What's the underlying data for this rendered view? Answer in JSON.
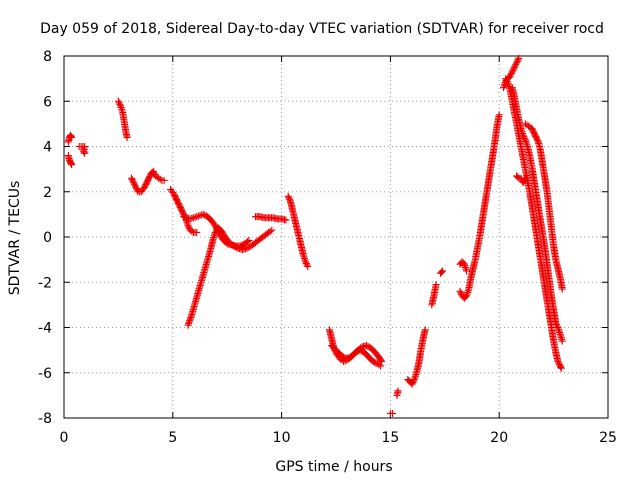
{
  "chart_data": {
    "type": "scatter",
    "title": "Day 059 of 2018, Sidereal Day-to-day VTEC variation (SDTVAR) for receiver rocd",
    "xlabel": "GPS time / hours",
    "ylabel": "SDTVAR / TECUs",
    "xlim": [
      0,
      25
    ],
    "ylim": [
      -8,
      8
    ],
    "xticks": [
      0,
      5,
      10,
      15,
      20,
      25
    ],
    "yticks": [
      -8,
      -6,
      -4,
      -2,
      0,
      2,
      4,
      6,
      8
    ],
    "grid": true,
    "marker": "+",
    "color": "#ee0000",
    "series": [
      {
        "name": "SDTVAR",
        "segments": [
          [
            [
              0.2,
              3.6
            ],
            [
              0.25,
              3.4
            ],
            [
              0.3,
              3.3
            ],
            [
              0.35,
              3.2
            ]
          ],
          [
            [
              0.2,
              4.2
            ],
            [
              0.25,
              4.4
            ],
            [
              0.3,
              4.5
            ],
            [
              0.35,
              4.4
            ]
          ],
          [
            [
              0.7,
              4.0
            ],
            [
              0.95,
              4.0
            ],
            [
              0.9,
              3.8
            ],
            [
              0.95,
              3.7
            ]
          ],
          [
            [
              2.5,
              6.0
            ],
            [
              2.6,
              5.8
            ],
            [
              2.7,
              5.5
            ],
            [
              2.75,
              5.2
            ],
            [
              2.8,
              4.9
            ],
            [
              2.85,
              4.6
            ],
            [
              2.9,
              4.4
            ]
          ],
          [
            [
              3.1,
              2.6
            ],
            [
              3.2,
              2.4
            ],
            [
              3.3,
              2.2
            ],
            [
              3.4,
              2.0
            ],
            [
              3.55,
              2.0
            ],
            [
              3.7,
              2.2
            ],
            [
              3.85,
              2.5
            ],
            [
              4.0,
              2.8
            ],
            [
              4.1,
              2.9
            ],
            [
              4.2,
              2.7
            ],
            [
              4.35,
              2.6
            ],
            [
              4.5,
              2.5
            ],
            [
              4.6,
              2.5
            ]
          ],
          [
            [
              4.9,
              2.1
            ],
            [
              5.05,
              1.9
            ],
            [
              5.2,
              1.6
            ],
            [
              5.35,
              1.3
            ],
            [
              5.5,
              1.0
            ],
            [
              5.6,
              0.8
            ],
            [
              5.7,
              0.5
            ],
            [
              5.8,
              0.3
            ],
            [
              5.95,
              0.2
            ],
            [
              6.1,
              0.2
            ]
          ],
          [
            [
              5.5,
              0.9
            ],
            [
              5.8,
              0.8
            ],
            [
              6.1,
              0.9
            ],
            [
              6.4,
              1.0
            ],
            [
              6.6,
              0.9
            ],
            [
              6.8,
              0.7
            ],
            [
              6.95,
              0.5
            ],
            [
              7.1,
              0.2
            ],
            [
              7.3,
              -0.1
            ],
            [
              7.5,
              -0.3
            ],
            [
              7.7,
              -0.35
            ],
            [
              7.9,
              -0.4
            ],
            [
              8.1,
              -0.4
            ],
            [
              8.3,
              -0.3
            ],
            [
              8.5,
              -0.15
            ]
          ],
          [
            [
              5.7,
              -3.9
            ],
            [
              5.85,
              -3.5
            ],
            [
              6.0,
              -3.0
            ],
            [
              6.15,
              -2.5
            ],
            [
              6.3,
              -2.0
            ],
            [
              6.45,
              -1.5
            ],
            [
              6.6,
              -1.0
            ],
            [
              6.75,
              -0.5
            ],
            [
              6.85,
              -0.1
            ],
            [
              6.95,
              0.2
            ],
            [
              7.1,
              0.4
            ],
            [
              7.25,
              0.25
            ],
            [
              7.4,
              0.0
            ],
            [
              7.6,
              -0.25
            ],
            [
              7.8,
              -0.4
            ],
            [
              8.0,
              -0.5
            ],
            [
              8.2,
              -0.55
            ],
            [
              8.4,
              -0.5
            ],
            [
              8.6,
              -0.4
            ],
            [
              8.8,
              -0.25
            ],
            [
              9.0,
              -0.1
            ],
            [
              9.2,
              0.05
            ],
            [
              9.4,
              0.2
            ],
            [
              9.55,
              0.3
            ]
          ],
          [
            [
              8.8,
              0.9
            ],
            [
              9.0,
              0.9
            ],
            [
              9.2,
              0.85
            ],
            [
              9.4,
              0.85
            ],
            [
              9.6,
              0.85
            ],
            [
              9.8,
              0.8
            ],
            [
              10.0,
              0.8
            ],
            [
              10.2,
              0.75
            ]
          ],
          [
            [
              10.3,
              1.8
            ],
            [
              10.4,
              1.6
            ],
            [
              10.5,
              1.2
            ],
            [
              10.6,
              0.8
            ],
            [
              10.7,
              0.4
            ],
            [
              10.8,
              0.0
            ],
            [
              10.9,
              -0.4
            ],
            [
              11.0,
              -0.8
            ],
            [
              11.1,
              -1.1
            ],
            [
              11.2,
              -1.3
            ]
          ],
          [
            [
              12.2,
              -4.1
            ],
            [
              12.3,
              -4.5
            ],
            [
              12.4,
              -4.9
            ],
            [
              12.55,
              -5.2
            ],
            [
              12.7,
              -5.4
            ],
            [
              12.85,
              -5.5
            ],
            [
              13.0,
              -5.45
            ],
            [
              13.2,
              -5.3
            ],
            [
              13.4,
              -5.1
            ],
            [
              13.6,
              -5.0
            ],
            [
              13.8,
              -5.1
            ],
            [
              14.0,
              -5.3
            ],
            [
              14.2,
              -5.5
            ],
            [
              14.4,
              -5.6
            ],
            [
              14.55,
              -5.7
            ]
          ],
          [
            [
              12.3,
              -4.8
            ],
            [
              12.5,
              -5.0
            ],
            [
              12.7,
              -5.2
            ],
            [
              12.9,
              -5.35
            ],
            [
              13.1,
              -5.35
            ],
            [
              13.3,
              -5.2
            ],
            [
              13.5,
              -5.0
            ],
            [
              13.7,
              -4.85
            ],
            [
              13.9,
              -4.8
            ],
            [
              14.1,
              -4.9
            ],
            [
              14.3,
              -5.1
            ],
            [
              14.5,
              -5.35
            ],
            [
              14.6,
              -5.5
            ]
          ],
          [
            [
              15.0,
              -7.8
            ],
            [
              15.1,
              -7.8
            ]
          ],
          [
            [
              15.3,
              -7.0
            ],
            [
              15.35,
              -6.8
            ]
          ],
          [
            [
              15.8,
              -6.3
            ],
            [
              15.9,
              -6.4
            ],
            [
              16.0,
              -6.5
            ],
            [
              16.1,
              -6.3
            ],
            [
              16.2,
              -6.0
            ],
            [
              16.3,
              -5.6
            ],
            [
              16.4,
              -5.0
            ],
            [
              16.5,
              -4.5
            ],
            [
              16.6,
              -4.1
            ]
          ],
          [
            [
              16.9,
              -3.0
            ],
            [
              17.0,
              -2.6
            ],
            [
              17.1,
              -2.1
            ]
          ],
          [
            [
              17.3,
              -1.6
            ],
            [
              17.4,
              -1.5
            ]
          ],
          [
            [
              18.2,
              -2.4
            ],
            [
              18.3,
              -2.6
            ],
            [
              18.4,
              -2.7
            ],
            [
              18.5,
              -2.6
            ],
            [
              18.6,
              -2.3
            ],
            [
              18.7,
              -1.8
            ],
            [
              18.8,
              -1.4
            ],
            [
              18.9,
              -1.0
            ],
            [
              19.0,
              -0.5
            ],
            [
              19.1,
              0.0
            ],
            [
              19.2,
              0.6
            ],
            [
              19.3,
              1.2
            ],
            [
              19.4,
              1.8
            ],
            [
              19.5,
              2.4
            ],
            [
              19.6,
              3.0
            ],
            [
              19.7,
              3.6
            ],
            [
              19.8,
              4.2
            ],
            [
              19.9,
              4.9
            ],
            [
              20.0,
              5.4
            ]
          ],
          [
            [
              18.2,
              -1.2
            ],
            [
              18.3,
              -1.1
            ],
            [
              18.4,
              -1.2
            ],
            [
              18.5,
              -1.5
            ]
          ],
          [
            [
              20.2,
              6.6
            ],
            [
              20.3,
              6.9
            ],
            [
              20.4,
              7.0
            ],
            [
              20.5,
              7.1
            ],
            [
              20.6,
              7.3
            ],
            [
              20.7,
              7.5
            ],
            [
              20.8,
              7.7
            ],
            [
              20.9,
              7.9
            ]
          ],
          [
            [
              20.3,
              7.0
            ],
            [
              20.4,
              6.8
            ],
            [
              20.5,
              6.5
            ],
            [
              20.6,
              6.0
            ],
            [
              20.7,
              5.5
            ],
            [
              20.8,
              5.0
            ],
            [
              20.9,
              4.5
            ],
            [
              21.0,
              4.0
            ],
            [
              21.1,
              3.5
            ],
            [
              21.2,
              3.0
            ],
            [
              21.3,
              2.5
            ],
            [
              21.4,
              2.0
            ],
            [
              21.5,
              1.4
            ],
            [
              21.6,
              0.8
            ],
            [
              21.7,
              0.2
            ],
            [
              21.8,
              -0.4
            ],
            [
              21.9,
              -1.0
            ],
            [
              22.0,
              -1.6
            ],
            [
              22.1,
              -2.2
            ],
            [
              22.2,
              -2.8
            ],
            [
              22.3,
              -3.4
            ],
            [
              22.4,
              -4.0
            ],
            [
              22.5,
              -4.6
            ],
            [
              22.6,
              -5.1
            ],
            [
              22.7,
              -5.5
            ],
            [
              22.8,
              -5.7
            ],
            [
              22.85,
              -5.8
            ]
          ],
          [
            [
              20.6,
              6.6
            ],
            [
              20.7,
              6.2
            ],
            [
              20.8,
              5.7
            ],
            [
              20.9,
              5.2
            ],
            [
              21.0,
              4.8
            ],
            [
              21.1,
              4.5
            ],
            [
              21.2,
              4.3
            ],
            [
              21.3,
              4.0
            ],
            [
              21.4,
              3.6
            ],
            [
              21.5,
              3.1
            ],
            [
              21.6,
              2.5
            ],
            [
              21.7,
              1.9
            ],
            [
              21.8,
              1.3
            ],
            [
              21.9,
              0.7
            ],
            [
              22.0,
              0.1
            ],
            [
              22.1,
              -0.5
            ],
            [
              22.2,
              -1.2
            ],
            [
              22.3,
              -1.9
            ],
            [
              22.4,
              -2.6
            ],
            [
              22.5,
              -3.2
            ],
            [
              22.6,
              -3.8
            ],
            [
              22.7,
              -4.0
            ],
            [
              22.8,
              -4.3
            ],
            [
              22.9,
              -4.6
            ]
          ],
          [
            [
              20.8,
              2.7
            ],
            [
              20.9,
              2.6
            ],
            [
              21.0,
              2.6
            ],
            [
              21.1,
              2.4
            ],
            [
              21.2,
              2.6
            ]
          ],
          [
            [
              21.2,
              5.0
            ],
            [
              21.35,
              4.9
            ],
            [
              21.5,
              4.8
            ],
            [
              21.65,
              4.5
            ],
            [
              21.8,
              4.2
            ],
            [
              21.9,
              3.8
            ],
            [
              22.0,
              3.2
            ],
            [
              22.1,
              2.6
            ],
            [
              22.2,
              2.0
            ],
            [
              22.3,
              1.2
            ],
            [
              22.4,
              0.4
            ],
            [
              22.5,
              -0.4
            ],
            [
              22.6,
              -1.0
            ],
            [
              22.7,
              -1.4
            ],
            [
              22.8,
              -1.8
            ],
            [
              22.9,
              -2.3
            ]
          ]
        ]
      }
    ]
  }
}
